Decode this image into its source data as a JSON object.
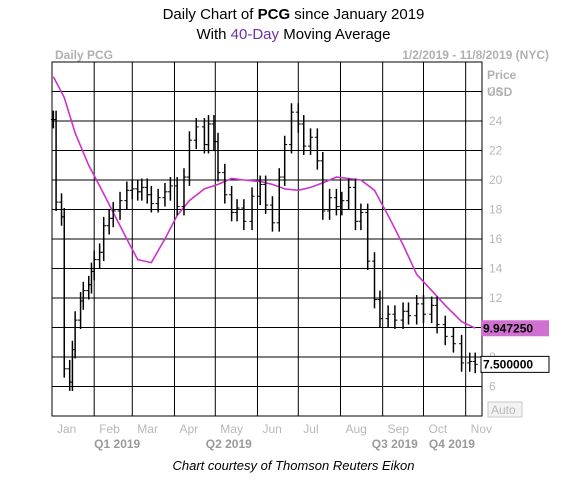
{
  "title": {
    "line1_prefix": "Daily Chart of ",
    "line1_ticker": "PCG",
    "line1_suffix": " since January 2019",
    "line2_prefix": "With ",
    "line2_highlight": "40-Day",
    "line2_suffix": " Moving Average"
  },
  "caption": "Chart courtesy of Thomson Reuters Eikon",
  "colors": {
    "price": "#000000",
    "moving_average": "#cc33cc",
    "grid": "#000000",
    "ma_label_bg": "#d070d0",
    "last_label_bg": "#ffffff"
  },
  "chart_data": {
    "type": "line",
    "chart_label": "Daily PCG",
    "date_range": "1/2/2019 - 11/8/2019 (NYC)",
    "y_axis_title": [
      "Price",
      "USD"
    ],
    "ylim": [
      4,
      28
    ],
    "y_ticks": [
      6,
      8,
      10,
      12,
      14,
      16,
      18,
      20,
      22,
      24,
      26
    ],
    "x_tick_labels": [
      "Jan",
      "Feb",
      "Mar",
      "Apr",
      "May",
      "Jun",
      "Jul",
      "Aug",
      "Sep",
      "Oct",
      "Nov"
    ],
    "quarters": [
      "Q1 2019",
      "Q2 2019",
      "Q3 2019",
      "Q4 2019"
    ],
    "scale_button": "Auto",
    "grid": true,
    "series": [
      {
        "name": "PCG",
        "style": "ohlc-bars",
        "x": [
          "2019-01-02",
          "2019-01-04",
          "2019-01-08",
          "2019-01-10",
          "2019-01-14",
          "2019-01-16",
          "2019-01-18",
          "2019-01-22",
          "2019-01-24",
          "2019-01-28",
          "2019-01-30",
          "2019-02-01",
          "2019-02-05",
          "2019-02-08",
          "2019-02-12",
          "2019-02-15",
          "2019-02-20",
          "2019-02-25",
          "2019-03-01",
          "2019-03-05",
          "2019-03-08",
          "2019-03-12",
          "2019-03-15",
          "2019-03-20",
          "2019-03-25",
          "2019-03-29",
          "2019-04-03",
          "2019-04-08",
          "2019-04-12",
          "2019-04-17",
          "2019-04-23",
          "2019-04-26",
          "2019-04-30",
          "2019-05-03",
          "2019-05-08",
          "2019-05-13",
          "2019-05-17",
          "2019-05-22",
          "2019-05-28",
          "2019-06-03",
          "2019-06-07",
          "2019-06-12",
          "2019-06-17",
          "2019-06-21",
          "2019-06-26",
          "2019-07-01",
          "2019-07-05",
          "2019-07-10",
          "2019-07-15",
          "2019-07-19",
          "2019-07-24",
          "2019-07-29",
          "2019-08-02",
          "2019-08-07",
          "2019-08-12",
          "2019-08-16",
          "2019-08-21",
          "2019-08-26",
          "2019-08-30",
          "2019-09-05",
          "2019-09-10",
          "2019-09-16",
          "2019-09-20",
          "2019-09-26",
          "2019-10-01",
          "2019-10-07",
          "2019-10-11",
          "2019-10-17",
          "2019-10-23",
          "2019-10-29",
          "2019-11-04",
          "2019-11-08"
        ],
        "values": [
          24.1,
          18.5,
          17.5,
          7.2,
          6.3,
          8.5,
          10.5,
          11.8,
          12.5,
          12.9,
          13.8,
          14.6,
          15.1,
          16.9,
          17.4,
          17.9,
          18.6,
          19.3,
          19.4,
          19.2,
          19.5,
          19.0,
          18.4,
          18.8,
          19.2,
          19.6,
          18.2,
          20.2,
          22.7,
          23.6,
          22.4,
          23.8,
          22.6,
          20.5,
          19.0,
          17.8,
          18.1,
          17.2,
          18.9,
          19.7,
          18.3,
          17.1,
          20.2,
          22.4,
          24.6,
          23.8,
          22.3,
          22.9,
          21.3,
          17.9,
          18.8,
          18.2,
          18.6,
          19.5,
          17.2,
          17.8,
          14.5,
          11.9,
          10.6,
          10.9,
          10.5,
          11.1,
          10.8,
          11.6,
          10.9,
          11.5,
          10.2,
          9.4,
          8.9,
          7.6,
          7.7,
          7.5
        ]
      },
      {
        "name": "40-Day Moving Average",
        "style": "line",
        "x": [
          "2019-01-02",
          "2019-01-10",
          "2019-01-18",
          "2019-01-28",
          "2019-02-05",
          "2019-02-15",
          "2019-02-25",
          "2019-03-05",
          "2019-03-15",
          "2019-03-25",
          "2019-04-03",
          "2019-04-12",
          "2019-04-23",
          "2019-05-03",
          "2019-05-13",
          "2019-05-22",
          "2019-06-03",
          "2019-06-12",
          "2019-06-21",
          "2019-07-01",
          "2019-07-10",
          "2019-07-19",
          "2019-07-29",
          "2019-08-07",
          "2019-08-16",
          "2019-08-26",
          "2019-09-05",
          "2019-09-16",
          "2019-09-26",
          "2019-10-07",
          "2019-10-17",
          "2019-10-29",
          "2019-11-08"
        ],
        "values": [
          27.0,
          25.6,
          23.2,
          21.0,
          19.6,
          17.8,
          16.0,
          14.6,
          14.4,
          16.0,
          17.6,
          18.6,
          19.4,
          19.7,
          20.1,
          20.0,
          19.9,
          19.7,
          19.4,
          19.3,
          19.5,
          19.8,
          20.2,
          20.1,
          20.0,
          19.3,
          17.6,
          15.6,
          13.6,
          12.5,
          11.5,
          10.4,
          9.95
        ]
      }
    ],
    "last_values": {
      "moving_average": "9.947250",
      "price": "7.500000"
    }
  }
}
